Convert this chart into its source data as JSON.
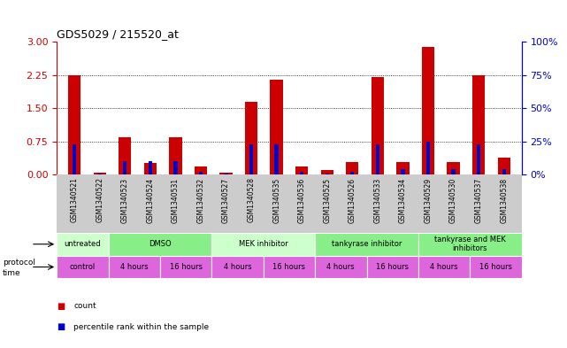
{
  "title": "GDS5029 / 215520_at",
  "samples": [
    "GSM1340521",
    "GSM1340522",
    "GSM1340523",
    "GSM1340524",
    "GSM1340531",
    "GSM1340532",
    "GSM1340527",
    "GSM1340528",
    "GSM1340535",
    "GSM1340536",
    "GSM1340525",
    "GSM1340526",
    "GSM1340533",
    "GSM1340534",
    "GSM1340529",
    "GSM1340530",
    "GSM1340537",
    "GSM1340538"
  ],
  "red_values": [
    2.25,
    0.04,
    0.85,
    0.27,
    0.85,
    0.18,
    0.04,
    1.65,
    2.15,
    0.18,
    0.1,
    0.28,
    2.2,
    0.28,
    2.88,
    0.28,
    2.25,
    0.38
  ],
  "blue_pct": [
    23,
    1,
    10,
    10,
    10,
    2,
    1,
    23,
    23,
    2,
    1,
    2,
    23,
    4,
    25,
    4,
    23,
    4
  ],
  "ylim_left": [
    0,
    3
  ],
  "yticks_left": [
    0,
    0.75,
    1.5,
    2.25,
    3
  ],
  "ylim_right": [
    0,
    100
  ],
  "yticks_right": [
    0,
    25,
    50,
    75,
    100
  ],
  "left_axis_color": "#cc0000",
  "right_axis_color": "#0000cc",
  "bar_red": "#cc0000",
  "bar_blue": "#0000cc",
  "protocol_row": [
    {
      "label": "untreated",
      "span": 2,
      "color": "#ccffcc"
    },
    {
      "label": "DMSO",
      "span": 4,
      "color": "#88ee88"
    },
    {
      "label": "MEK inhibitor",
      "span": 4,
      "color": "#ccffcc"
    },
    {
      "label": "tankyrase inhibitor",
      "span": 4,
      "color": "#88ee88"
    },
    {
      "label": "tankyrase and MEK\ninhibitors",
      "span": 4,
      "color": "#88ee88"
    }
  ],
  "time_row": [
    {
      "label": "control",
      "span": 2,
      "color": "#dd66dd"
    },
    {
      "label": "4 hours",
      "span": 2,
      "color": "#dd66dd"
    },
    {
      "label": "16 hours",
      "span": 2,
      "color": "#dd66dd"
    },
    {
      "label": "4 hours",
      "span": 2,
      "color": "#dd66dd"
    },
    {
      "label": "16 hours",
      "span": 2,
      "color": "#dd66dd"
    },
    {
      "label": "4 hours",
      "span": 2,
      "color": "#dd66dd"
    },
    {
      "label": "16 hours",
      "span": 2,
      "color": "#dd66dd"
    },
    {
      "label": "4 hours",
      "span": 2,
      "color": "#dd66dd"
    },
    {
      "label": "16 hours",
      "span": 2,
      "color": "#dd66dd"
    }
  ],
  "bg_color": "#ffffff",
  "bar_width": 0.5,
  "blue_bar_width": 0.15
}
